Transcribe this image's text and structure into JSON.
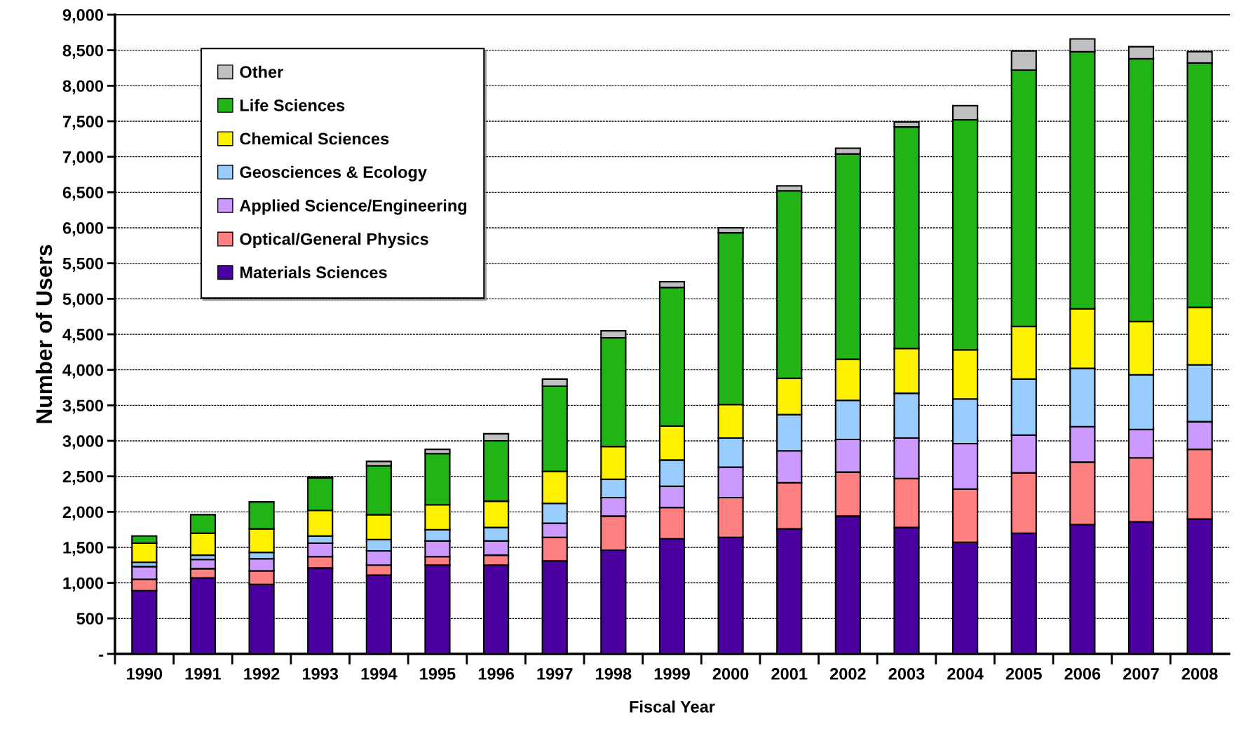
{
  "chart_data": {
    "type": "bar",
    "stacked": true,
    "xlabel": "Fiscal Year",
    "ylabel": "Number of Users",
    "categories": [
      "1990",
      "1991",
      "1992",
      "1993",
      "1994",
      "1995",
      "1996",
      "1997",
      "1998",
      "1999",
      "2000",
      "2001",
      "2002",
      "2003",
      "2004",
      "2005",
      "2006",
      "2007",
      "2008"
    ],
    "series": [
      {
        "name": "Materials Sciences",
        "color": "#4b00a0",
        "values": [
          890,
          1070,
          980,
          1210,
          1110,
          1250,
          1250,
          1310,
          1460,
          1620,
          1640,
          1760,
          1940,
          1780,
          1570,
          1700,
          1820,
          1860,
          1900
        ]
      },
      {
        "name": "Optical/General Physics",
        "color": "#ff8080",
        "values": [
          160,
          130,
          190,
          160,
          140,
          120,
          140,
          330,
          480,
          440,
          560,
          650,
          620,
          690,
          750,
          850,
          880,
          900,
          980
        ]
      },
      {
        "name": "Applied Science/Engineering",
        "color": "#cc99ff",
        "values": [
          180,
          130,
          170,
          190,
          200,
          220,
          200,
          200,
          260,
          300,
          430,
          450,
          460,
          570,
          640,
          530,
          500,
          400,
          390
        ]
      },
      {
        "name": "Geosciences & Ecology",
        "color": "#99ccff",
        "values": [
          60,
          60,
          90,
          100,
          160,
          160,
          190,
          280,
          260,
          370,
          410,
          510,
          550,
          630,
          630,
          790,
          820,
          770,
          800
        ]
      },
      {
        "name": "Chemical Sciences",
        "color": "#fff200",
        "values": [
          270,
          310,
          330,
          360,
          350,
          350,
          370,
          450,
          460,
          480,
          470,
          510,
          580,
          630,
          690,
          740,
          840,
          750,
          810
        ]
      },
      {
        "name": "Life Sciences",
        "color": "#20b515",
        "values": [
          100,
          260,
          380,
          460,
          690,
          720,
          850,
          1200,
          1530,
          1950,
          2420,
          2640,
          2890,
          3120,
          3240,
          3610,
          3620,
          3700,
          3440
        ]
      },
      {
        "name": "Other",
        "color": "#c0c0c0",
        "values": [
          null,
          null,
          null,
          10,
          60,
          60,
          100,
          100,
          100,
          80,
          70,
          70,
          80,
          70,
          200,
          270,
          180,
          170,
          160
        ]
      }
    ],
    "ylim": [
      0,
      9000
    ],
    "yticks": [
      {
        "value": 0,
        "label": "-"
      },
      {
        "value": 500,
        "label": "500"
      },
      {
        "value": 1000,
        "label": "1,000"
      },
      {
        "value": 1500,
        "label": "1,500"
      },
      {
        "value": 2000,
        "label": "2,000"
      },
      {
        "value": 2500,
        "label": "2,500"
      },
      {
        "value": 3000,
        "label": "3,000"
      },
      {
        "value": 3500,
        "label": "3,500"
      },
      {
        "value": 4000,
        "label": "4,000"
      },
      {
        "value": 4500,
        "label": "4,500"
      },
      {
        "value": 5000,
        "label": "5,000"
      },
      {
        "value": 5500,
        "label": "5,500"
      },
      {
        "value": 6000,
        "label": "6,000"
      },
      {
        "value": 6500,
        "label": "6,500"
      },
      {
        "value": 7000,
        "label": "7,000"
      },
      {
        "value": 7500,
        "label": "7,500"
      },
      {
        "value": 8000,
        "label": "8,000"
      },
      {
        "value": 8500,
        "label": "8,500"
      },
      {
        "value": 9000,
        "label": "9,000"
      }
    ],
    "grid": "y",
    "legend": "top left"
  }
}
